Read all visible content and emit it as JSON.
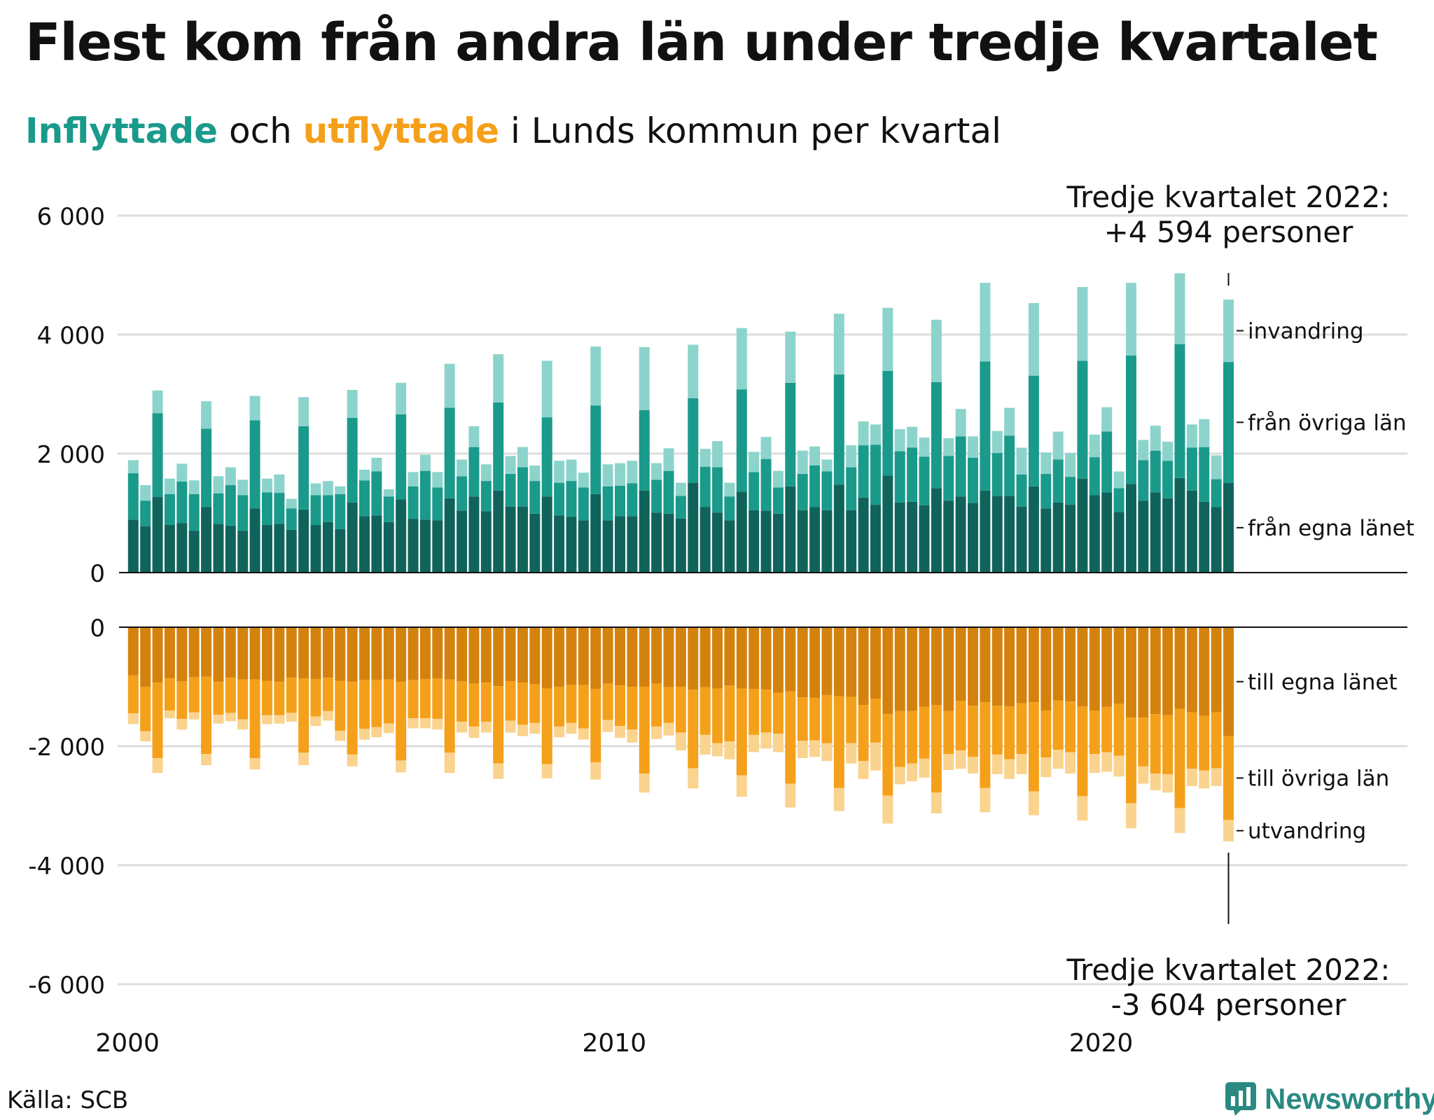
{
  "title": "Flest kom från andra län under tredje kvartalet",
  "subtitle": {
    "in_word": "Inflyttade",
    "and_word": " och ",
    "out_word": "utflyttade",
    "rest": " i Lunds kommun per kvartal"
  },
  "source": "Källa: SCB",
  "logo": {
    "text": "Newsworthy",
    "icon": "bar-chart-logo-icon"
  },
  "colors": {
    "in_egna": "#10635b",
    "in_ovriga": "#1a9a8b",
    "in_invandring": "#8cd4cb",
    "out_egna": "#d4820e",
    "out_ovriga": "#f5a01a",
    "out_utvandring": "#fad38e",
    "grid": "#dddddd",
    "axis": "#111111"
  },
  "chart_data": {
    "type": "bar",
    "stacked": true,
    "x_axis": {
      "ticks": [
        "2000",
        "2010",
        "2020"
      ],
      "range": [
        "2000 Q1",
        "2022 Q3"
      ]
    },
    "y_axis": {
      "ticks": [
        "6 000",
        "4 000",
        "2 000",
        "0",
        "0",
        "-2 000",
        "-4 000",
        "-6 000"
      ],
      "inflow_range": [
        0,
        6000
      ],
      "outflow_range": [
        -6000,
        0
      ]
    },
    "grid": true,
    "annotations": {
      "inflow": {
        "line1": "Tredje kvartalet 2022:",
        "line2": "+4 594 personer",
        "value": 4594,
        "period": "2022 Q3"
      },
      "outflow": {
        "line1": "Tredje kvartalet 2022:",
        "line2": "-3 604 personer",
        "value": -3604,
        "period": "2022 Q3"
      }
    },
    "series": [
      {
        "name": "från egna länet",
        "group": "inflyttade",
        "values": [
          890,
          780,
          1270,
          800,
          830,
          700,
          1100,
          820,
          790,
          700,
          1080,
          800,
          820,
          720,
          1060,
          800,
          850,
          730,
          1180,
          950,
          960,
          850,
          1230,
          900,
          890,
          880,
          1250,
          1040,
          1280,
          1030,
          1380,
          1110,
          1110,
          990,
          1280,
          960,
          940,
          880,
          1320,
          880,
          950,
          950,
          1380,
          1010,
          990,
          910,
          1510,
          1100,
          1010,
          880,
          1360,
          1050,
          1040,
          990,
          1450,
          1050,
          1100,
          1050,
          1480,
          1050,
          1260,
          1140,
          1630,
          1180,
          1190,
          1130,
          1420,
          1210,
          1280,
          1170,
          1380,
          1290,
          1290,
          1110,
          1450,
          1080,
          1180,
          1140,
          1580,
          1300,
          1350,
          1020,
          1490,
          1210,
          1350,
          1250,
          1590,
          1380,
          1190,
          1100,
          1510
        ]
      },
      {
        "name": "från övriga län",
        "group": "inflyttade",
        "values": [
          780,
          430,
          1410,
          520,
          700,
          620,
          1320,
          510,
          680,
          600,
          1480,
          550,
          520,
          360,
          1400,
          500,
          450,
          590,
          1420,
          600,
          740,
          430,
          1430,
          550,
          820,
          550,
          1520,
          580,
          830,
          510,
          1480,
          550,
          660,
          550,
          1330,
          550,
          600,
          550,
          1490,
          570,
          510,
          550,
          1350,
          550,
          720,
          380,
          1420,
          680,
          760,
          400,
          1720,
          640,
          870,
          440,
          1740,
          610,
          700,
          650,
          1850,
          720,
          880,
          1010,
          1760,
          860,
          910,
          820,
          1780,
          750,
          1010,
          760,
          2170,
          720,
          1010,
          540,
          1860,
          580,
          720,
          470,
          1980,
          640,
          1020,
          400,
          2160,
          680,
          700,
          630,
          2250,
          720,
          920,
          470,
          2030
        ]
      },
      {
        "name": "invandring",
        "group": "inflyttade",
        "values": [
          220,
          260,
          380,
          260,
          300,
          230,
          460,
          290,
          300,
          260,
          410,
          230,
          310,
          160,
          490,
          200,
          240,
          130,
          470,
          180,
          230,
          120,
          530,
          240,
          270,
          260,
          740,
          280,
          350,
          280,
          810,
          300,
          340,
          260,
          950,
          370,
          360,
          250,
          990,
          370,
          380,
          380,
          1060,
          280,
          380,
          220,
          900,
          300,
          440,
          230,
          1030,
          340,
          370,
          280,
          860,
          390,
          320,
          200,
          1020,
          370,
          400,
          340,
          1060,
          370,
          350,
          320,
          1050,
          300,
          460,
          360,
          1320,
          370,
          470,
          450,
          1220,
          360,
          470,
          400,
          1240,
          380,
          410,
          280,
          1220,
          340,
          420,
          320,
          1190,
          390,
          470,
          400,
          1050
        ]
      },
      {
        "name": "till egna länet",
        "group": "utflyttade",
        "values": [
          -810,
          -1000,
          -930,
          -860,
          -910,
          -840,
          -830,
          -920,
          -850,
          -880,
          -880,
          -900,
          -920,
          -850,
          -860,
          -870,
          -850,
          -900,
          -920,
          -890,
          -890,
          -880,
          -920,
          -890,
          -870,
          -860,
          -880,
          -910,
          -950,
          -930,
          -990,
          -910,
          -930,
          -960,
          -1030,
          -1000,
          -970,
          -970,
          -1040,
          -950,
          -980,
          -1000,
          -1000,
          -950,
          -1010,
          -1000,
          -1050,
          -1010,
          -1030,
          -980,
          -1030,
          -1040,
          -1050,
          -1100,
          -1080,
          -1180,
          -1190,
          -1140,
          -1160,
          -1170,
          -1310,
          -1200,
          -1460,
          -1410,
          -1410,
          -1340,
          -1310,
          -1410,
          -1240,
          -1320,
          -1260,
          -1320,
          -1330,
          -1280,
          -1260,
          -1400,
          -1230,
          -1250,
          -1330,
          -1400,
          -1340,
          -1290,
          -1520,
          -1520,
          -1460,
          -1480,
          -1370,
          -1430,
          -1490,
          -1430,
          -1830
        ]
      },
      {
        "name": "till övriga län",
        "group": "utflyttade",
        "values": [
          -640,
          -750,
          -1270,
          -540,
          -630,
          -590,
          -1300,
          -550,
          -590,
          -670,
          -1320,
          -580,
          -560,
          -590,
          -1250,
          -630,
          -560,
          -840,
          -1220,
          -820,
          -790,
          -740,
          -1320,
          -640,
          -660,
          -680,
          -1230,
          -680,
          -720,
          -660,
          -1300,
          -660,
          -710,
          -650,
          -1270,
          -670,
          -640,
          -730,
          -1230,
          -610,
          -680,
          -720,
          -1460,
          -720,
          -600,
          -770,
          -1320,
          -800,
          -920,
          -940,
          -1460,
          -770,
          -720,
          -690,
          -1550,
          -730,
          -710,
          -810,
          -1540,
          -780,
          -940,
          -740,
          -1370,
          -940,
          -880,
          -870,
          -1470,
          -720,
          -830,
          -860,
          -1440,
          -820,
          -890,
          -850,
          -1500,
          -790,
          -830,
          -850,
          -1510,
          -730,
          -760,
          -870,
          -1440,
          -820,
          -1000,
          -990,
          -1670,
          -950,
          -920,
          -940,
          -1410
        ]
      },
      {
        "name": "utvandring",
        "group": "utflyttade",
        "values": [
          -180,
          -170,
          -250,
          -130,
          -180,
          -120,
          -190,
          -150,
          -140,
          -170,
          -190,
          -150,
          -140,
          -150,
          -210,
          -160,
          -160,
          -170,
          -200,
          -180,
          -170,
          -160,
          -200,
          -170,
          -170,
          -180,
          -340,
          -180,
          -190,
          -180,
          -260,
          -200,
          -190,
          -180,
          -240,
          -180,
          -180,
          -190,
          -290,
          -200,
          -200,
          -220,
          -320,
          -210,
          -210,
          -300,
          -340,
          -330,
          -220,
          -300,
          -360,
          -290,
          -270,
          -310,
          -400,
          -290,
          -280,
          -300,
          -390,
          -340,
          -300,
          -470,
          -470,
          -290,
          -300,
          -320,
          -350,
          -270,
          -310,
          -280,
          -410,
          -330,
          -330,
          -340,
          -400,
          -330,
          -320,
          -360,
          -410,
          -320,
          -330,
          -350,
          -420,
          -290,
          -280,
          -310,
          -420,
          -290,
          -300,
          -300,
          -360
        ]
      }
    ]
  }
}
